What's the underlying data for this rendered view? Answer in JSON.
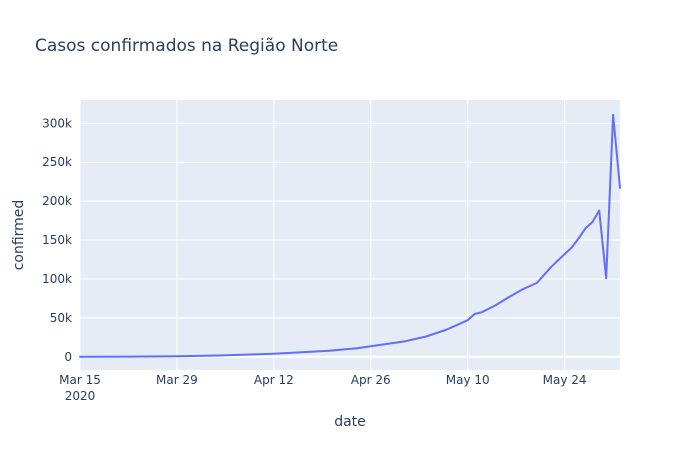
{
  "chart_data": {
    "type": "line",
    "title": "Casos confirmados na Região Norte",
    "xlabel": "date",
    "ylabel": "confirmed",
    "x_ticks": [
      {
        "date": "2020-03-15",
        "label": "Mar 15",
        "sublabel": "2020"
      },
      {
        "date": "2020-03-29",
        "label": "Mar 29"
      },
      {
        "date": "2020-04-12",
        "label": "Apr 12"
      },
      {
        "date": "2020-04-26",
        "label": "Apr 26"
      },
      {
        "date": "2020-05-10",
        "label": "May 10"
      },
      {
        "date": "2020-05-24",
        "label": "May 24"
      }
    ],
    "y_ticks": [
      {
        "value": 0,
        "label": "0"
      },
      {
        "value": 50000,
        "label": "50k"
      },
      {
        "value": 100000,
        "label": "100k"
      },
      {
        "value": 150000,
        "label": "150k"
      },
      {
        "value": 200000,
        "label": "200k"
      },
      {
        "value": 250000,
        "label": "250k"
      },
      {
        "value": 300000,
        "label": "300k"
      }
    ],
    "xlim": [
      "2020-03-15",
      "2020-06-01"
    ],
    "ylim": [
      -17000,
      330000
    ],
    "grid": true,
    "line_color": "#636efa",
    "plot_bg": "#e5ecf6",
    "series": [
      {
        "points": [
          {
            "x": "2020-03-15",
            "y": 0
          },
          {
            "x": "2020-03-22",
            "y": 200
          },
          {
            "x": "2020-03-29",
            "y": 700
          },
          {
            "x": "2020-04-04",
            "y": 1600
          },
          {
            "x": "2020-04-08",
            "y": 2800
          },
          {
            "x": "2020-04-12",
            "y": 4000
          },
          {
            "x": "2020-04-16",
            "y": 5800
          },
          {
            "x": "2020-04-20",
            "y": 7800
          },
          {
            "x": "2020-04-24",
            "y": 11000
          },
          {
            "x": "2020-04-26",
            "y": 13500
          },
          {
            "x": "2020-04-28",
            "y": 16000
          },
          {
            "x": "2020-05-01",
            "y": 20000
          },
          {
            "x": "2020-05-04",
            "y": 26000
          },
          {
            "x": "2020-05-07",
            "y": 35000
          },
          {
            "x": "2020-05-10",
            "y": 47000
          },
          {
            "x": "2020-05-11",
            "y": 55000
          },
          {
            "x": "2020-05-12",
            "y": 57000
          },
          {
            "x": "2020-05-14",
            "y": 66000
          },
          {
            "x": "2020-05-16",
            "y": 77000
          },
          {
            "x": "2020-05-18",
            "y": 87000
          },
          {
            "x": "2020-05-20",
            "y": 95000
          },
          {
            "x": "2020-05-22",
            "y": 115000
          },
          {
            "x": "2020-05-24",
            "y": 132000
          },
          {
            "x": "2020-05-25",
            "y": 140000
          },
          {
            "x": "2020-05-26",
            "y": 152000
          },
          {
            "x": "2020-05-27",
            "y": 165000
          },
          {
            "x": "2020-05-28",
            "y": 173000
          },
          {
            "x": "2020-05-29",
            "y": 188000
          },
          {
            "x": "2020-05-30",
            "y": 101000
          },
          {
            "x": "2020-05-31",
            "y": 311000
          },
          {
            "x": "2020-06-01",
            "y": 217000
          }
        ]
      }
    ]
  }
}
